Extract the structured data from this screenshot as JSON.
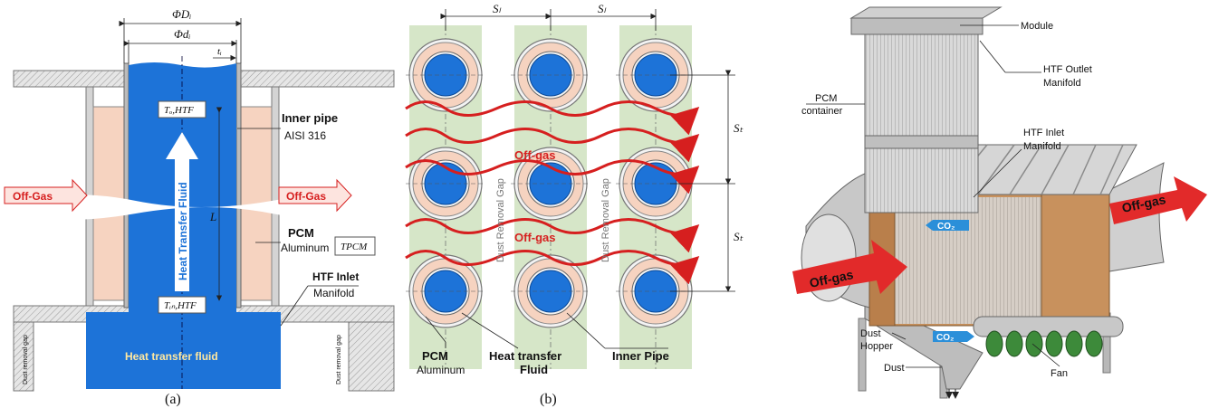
{
  "panel_a": {
    "dim_D": "ΦDᵢ",
    "dim_d": "Φdᵢ",
    "dim_t": "tᵢ",
    "dim_L": "L",
    "t_out": "Tₒ,HTF",
    "t_in": "Tᵢₙ,HTF",
    "inner_pipe": "Inner pipe",
    "aisi": "AISI 316",
    "off_gas_left": "Off-Gas",
    "off_gas_right": "Off-Gas",
    "htf_vertical": "Heat Transfer Fluid",
    "pcm": "PCM",
    "aluminum": "Aluminum",
    "t_pcm": "TPCM",
    "htf_inlet": "HTF Inlet",
    "manifold": "Manifold",
    "dust_gap_left": "Dust removal gap",
    "dust_gap_right": "Dust removal gap",
    "htf_bottom": "Heat transfer fluid",
    "caption": "(a)"
  },
  "panel_b": {
    "sl1": "Sₗ",
    "sl2": "Sₗ",
    "st1": "Sₜ",
    "st2": "Sₜ",
    "off_gas_1": "Off-gas",
    "off_gas_2": "Off-gas",
    "gap_1": "Dust Removal Gap",
    "gap_2": "Dust Removal Gap",
    "pcm": "PCM",
    "aluminum": "Aluminum",
    "htf_1": "Heat transfer",
    "htf_2": "Fluid",
    "inner_pipe": "Inner Pipe",
    "caption": "(b)"
  },
  "panel_c": {
    "module": "Module",
    "htf_outlet_1": "HTF Outlet",
    "htf_outlet_2": "Manifold",
    "pcm_1": "PCM",
    "pcm_2": "container",
    "htf_inlet_1": "HTF Inlet",
    "htf_inlet_2": "Manifold",
    "off_gas_out": "Off-gas",
    "off_gas_in": "Off-gas",
    "co2_top": "CO₂",
    "co2_bottom": "CO₂",
    "hopper_1": "Dust",
    "hopper_2": "Hopper",
    "dust": "Dust",
    "fan": "Fan"
  },
  "colors": {
    "htf_blue": "#1d73d8",
    "pcm_peach": "#f6d3c0",
    "wall_grey": "#c8c8c8",
    "gap_green": "#d6e6c8",
    "offgas_red": "#d61f1f",
    "copper": "#c8915d",
    "fan_green": "#3d8a3a"
  }
}
